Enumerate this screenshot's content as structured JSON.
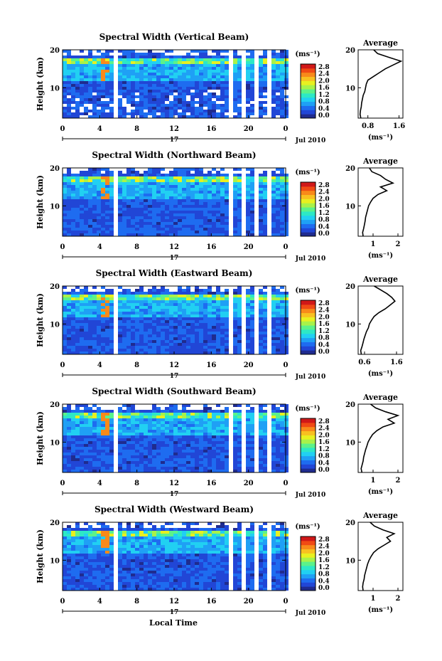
{
  "page": {
    "xlabel": "Local Time",
    "date_label": "Jul 2010",
    "day_label": "17"
  },
  "colorbar": {
    "unit": "(ms⁻¹)",
    "ticks": [
      "2.8",
      "2.4",
      "2.0",
      "1.6",
      "1.2",
      "0.8",
      "0.4",
      "0.0"
    ],
    "colors": [
      "#1f2b8f",
      "#2146d6",
      "#1e6cf0",
      "#1fa0f5",
      "#21d0f2",
      "#2de8c6",
      "#5cf28a",
      "#a8f24a",
      "#e8f020",
      "#f8c020",
      "#f88a1a",
      "#f04a14",
      "#d01818"
    ]
  },
  "chart_data": [
    {
      "type": "heatmap",
      "title": "Spectral Width (Vertical Beam)",
      "ylabel": "Height (km)",
      "xticks": [
        "0",
        "4",
        "8",
        "12",
        "16",
        "20",
        "0"
      ],
      "yticks": [
        "20",
        "10"
      ],
      "xlim": [
        0,
        24
      ],
      "ylim": [
        2,
        20
      ],
      "gaps_hours": [
        [
          5.3,
          5.8
        ],
        [
          17.5,
          17.9
        ],
        [
          19.2,
          19.6
        ],
        [
          20.3,
          20.7
        ],
        [
          22.0,
          22.4
        ]
      ],
      "profile": {
        "title": "Average",
        "xticks": [
          "0.8",
          "1.6"
        ],
        "xlim": [
          0.55,
          1.7
        ],
        "yticks": [
          "20",
          "10"
        ],
        "xlabel": "(ms⁻¹)",
        "height": [
          2,
          3,
          4,
          5,
          6,
          7,
          8,
          9,
          10,
          11,
          12,
          13,
          14,
          15,
          16,
          17,
          18,
          19,
          20
        ],
        "value": [
          0.62,
          0.6,
          0.61,
          0.63,
          0.64,
          0.66,
          0.68,
          0.72,
          0.74,
          0.76,
          0.8,
          0.95,
          1.1,
          1.25,
          1.45,
          1.65,
          1.35,
          1.05,
          0.95
        ]
      }
    },
    {
      "type": "heatmap",
      "title": "Spectral Width (Northward Beam)",
      "ylabel": "Height (km)",
      "xticks": [
        "0",
        "4",
        "8",
        "12",
        "16",
        "20",
        "0"
      ],
      "yticks": [
        "20",
        "10"
      ],
      "xlim": [
        0,
        24
      ],
      "ylim": [
        2,
        20
      ],
      "gaps_hours": [
        [
          5.3,
          5.8
        ],
        [
          17.5,
          17.9
        ],
        [
          19.2,
          19.6
        ],
        [
          20.3,
          20.7
        ],
        [
          22.0,
          22.4
        ]
      ],
      "profile": {
        "title": "Average",
        "xticks": [
          "1",
          "2"
        ],
        "xlim": [
          0.4,
          2.2
        ],
        "yticks": [
          "20",
          "10"
        ],
        "xlabel": "(ms⁻¹)",
        "height": [
          2,
          3,
          4,
          5,
          6,
          7,
          8,
          9,
          10,
          11,
          12,
          13,
          14,
          15,
          16,
          17,
          18,
          19,
          20
        ],
        "value": [
          0.6,
          0.58,
          0.62,
          0.65,
          0.68,
          0.7,
          0.74,
          0.78,
          0.82,
          0.9,
          1.0,
          1.2,
          1.55,
          1.3,
          1.8,
          1.5,
          1.3,
          0.95,
          0.85
        ]
      }
    },
    {
      "type": "heatmap",
      "title": "Spectral Width (Eastward Beam)",
      "ylabel": "Height (km)",
      "xticks": [
        "0",
        "4",
        "8",
        "12",
        "16",
        "20",
        "0"
      ],
      "yticks": [
        "20",
        "10"
      ],
      "xlim": [
        0,
        24
      ],
      "ylim": [
        2,
        20
      ],
      "gaps_hours": [
        [
          0.6,
          0.8
        ],
        [
          5.3,
          5.8
        ],
        [
          17.5,
          17.9
        ],
        [
          19.2,
          19.6
        ],
        [
          20.3,
          20.7
        ],
        [
          22.0,
          22.4
        ]
      ],
      "profile": {
        "title": "Average",
        "xticks": [
          "0.6",
          "1.6"
        ],
        "xlim": [
          0.4,
          1.8
        ],
        "yticks": [
          "20",
          "10"
        ],
        "xlabel": "(ms⁻¹)",
        "height": [
          2,
          3,
          4,
          5,
          6,
          7,
          8,
          9,
          10,
          11,
          12,
          13,
          14,
          15,
          16,
          17,
          18,
          19,
          20
        ],
        "value": [
          0.5,
          0.48,
          0.52,
          0.55,
          0.58,
          0.62,
          0.66,
          0.72,
          0.75,
          0.82,
          0.9,
          1.05,
          1.25,
          1.4,
          1.55,
          1.45,
          1.3,
          1.1,
          0.9
        ]
      }
    },
    {
      "type": "heatmap",
      "title": "Spectral Width (Southward Beam)",
      "ylabel": "Height (km)",
      "xticks": [
        "0",
        "4",
        "8",
        "12",
        "16",
        "20",
        "0"
      ],
      "yticks": [
        "20",
        "10"
      ],
      "xlim": [
        0,
        24
      ],
      "ylim": [
        2,
        20
      ],
      "gaps_hours": [
        [
          0.6,
          0.8
        ],
        [
          5.3,
          5.8
        ],
        [
          17.5,
          17.9
        ],
        [
          19.2,
          19.6
        ],
        [
          20.3,
          20.7
        ],
        [
          22.0,
          22.4
        ]
      ],
      "profile": {
        "title": "Average",
        "xticks": [
          "1",
          "2"
        ],
        "xlim": [
          0.4,
          2.2
        ],
        "yticks": [
          "20",
          "10"
        ],
        "xlabel": "(ms⁻¹)",
        "height": [
          2,
          3,
          4,
          5,
          6,
          7,
          8,
          9,
          10,
          11,
          12,
          13,
          14,
          15,
          16,
          17,
          18,
          19,
          20
        ],
        "value": [
          0.55,
          0.52,
          0.56,
          0.6,
          0.62,
          0.66,
          0.7,
          0.75,
          0.8,
          0.88,
          0.98,
          1.15,
          1.4,
          1.85,
          1.6,
          2.0,
          1.5,
          1.1,
          0.9
        ]
      }
    },
    {
      "type": "heatmap",
      "title": "Spectral Width (Westward Beam)",
      "ylabel": "Height (km)",
      "xticks": [
        "0",
        "4",
        "8",
        "12",
        "16",
        "20",
        "0"
      ],
      "yticks": [
        "20",
        "10"
      ],
      "xlim": [
        0,
        24
      ],
      "ylim": [
        2,
        20
      ],
      "gaps_hours": [
        [
          5.3,
          5.8
        ],
        [
          17.5,
          17.9
        ],
        [
          19.2,
          19.6
        ],
        [
          20.3,
          20.7
        ],
        [
          22.0,
          22.4
        ]
      ],
      "profile": {
        "title": "Average",
        "xticks": [
          "1",
          "2"
        ],
        "xlim": [
          0.4,
          2.2
        ],
        "yticks": [
          "20",
          "10"
        ],
        "xlabel": "(ms⁻¹)",
        "height": [
          2,
          3,
          4,
          5,
          6,
          7,
          8,
          9,
          10,
          11,
          12,
          13,
          14,
          15,
          16,
          17,
          18,
          19,
          20
        ],
        "value": [
          0.6,
          0.58,
          0.6,
          0.64,
          0.66,
          0.7,
          0.74,
          0.78,
          0.84,
          0.92,
          1.02,
          1.2,
          1.45,
          1.7,
          1.55,
          1.85,
          1.4,
          1.05,
          0.88
        ]
      }
    }
  ]
}
